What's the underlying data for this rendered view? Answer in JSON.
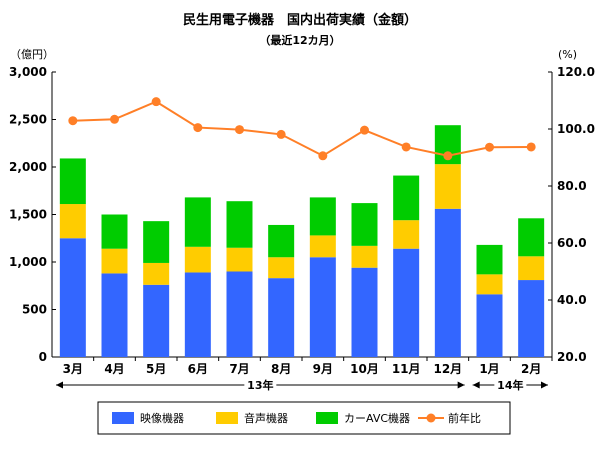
{
  "chart_data": {
    "type": "bar",
    "stacked": true,
    "title": "民生用電子機器　国内出荷実績（金額）",
    "subtitle": "（最近12カ月）",
    "ylabel_left": "（億円）",
    "ylabel_right": "(%)",
    "categories": [
      "3月",
      "4月",
      "5月",
      "6月",
      "7月",
      "8月",
      "9月",
      "10月",
      "11月",
      "12月",
      "1月",
      "2月"
    ],
    "year_groups": [
      {
        "label": "13年",
        "start": 0,
        "end": 9
      },
      {
        "label": "14年",
        "start": 10,
        "end": 11
      }
    ],
    "ylim_left": [
      0,
      3000
    ],
    "yticks_left": [
      "0",
      "500",
      "1,000",
      "1,500",
      "2,000",
      "2,500",
      "3,000"
    ],
    "ylim_right": [
      20,
      120
    ],
    "yticks_right": [
      "20.0",
      "40.0",
      "60.0",
      "80.0",
      "100.0",
      "120.0"
    ],
    "grid": false,
    "legend_position": "bottom",
    "series": [
      {
        "name": "映像機器",
        "kind": "bar",
        "axis": "left",
        "color": "#3366ff",
        "values": [
          1250,
          880,
          760,
          890,
          900,
          830,
          1050,
          940,
          1140,
          1560,
          660,
          810
        ]
      },
      {
        "name": "音声機器",
        "kind": "bar",
        "axis": "left",
        "color": "#ffcc00",
        "values": [
          360,
          260,
          230,
          270,
          250,
          220,
          230,
          230,
          300,
          470,
          210,
          250
        ]
      },
      {
        "name": "カーAVC機器",
        "kind": "bar",
        "axis": "left",
        "color": "#00cc00",
        "values": [
          480,
          360,
          440,
          520,
          490,
          340,
          400,
          450,
          470,
          410,
          310,
          400
        ]
      },
      {
        "name": "前年比",
        "kind": "line",
        "axis": "right",
        "color": "#ff7f27",
        "values": [
          102.9,
          103.4,
          109.6,
          100.5,
          99.8,
          98.1,
          90.6,
          99.6,
          93.7,
          90.6,
          93.6,
          93.7
        ]
      }
    ]
  }
}
